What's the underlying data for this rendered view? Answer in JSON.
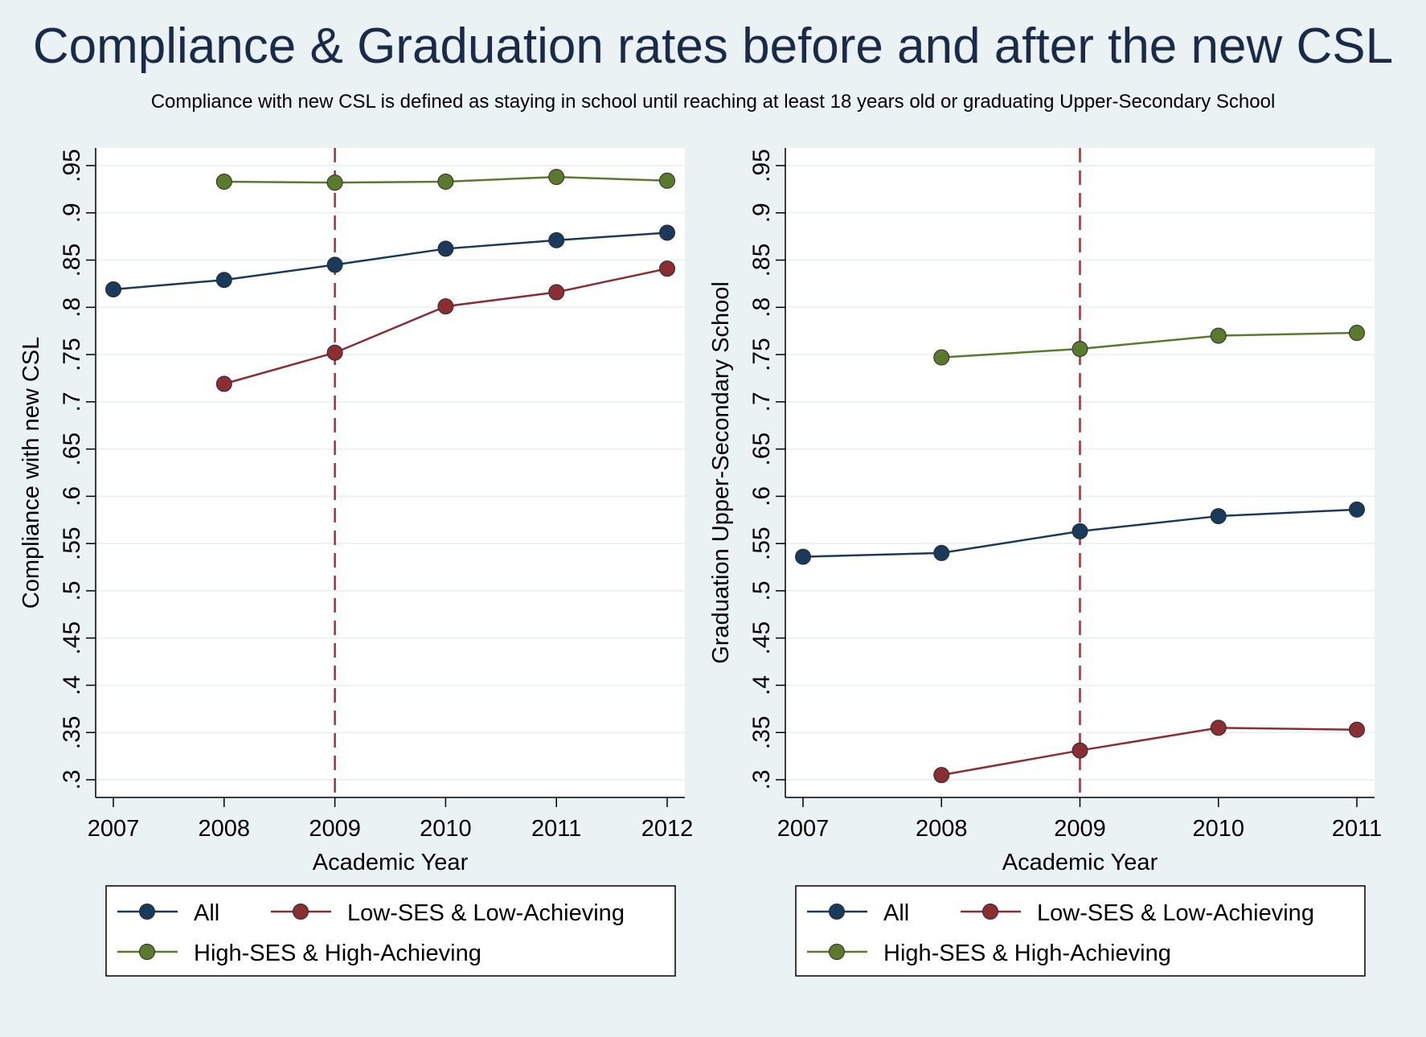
{
  "title": "Compliance & Graduation rates before and after the new CSL",
  "subtitle": "Compliance with new CSL is defined as staying in school until reaching at least 18 years old or graduating Upper-Secondary School",
  "colors": {
    "background": "#eaf2f3",
    "plot_background": "#ffffff",
    "grid": "#eaf2f3",
    "all": "#1a3a5c",
    "low": "#8b2e34",
    "high": "#5a7a2e",
    "reference_line": "#a0303a"
  },
  "legend_labels": [
    "All",
    "Low-SES & Low-Achieving",
    "High-SES & High-Achieving"
  ],
  "chart_data": [
    {
      "type": "line",
      "ylabel": "Compliance with new CSL",
      "xlabel": "Academic Year",
      "x_ticks": [
        "2007",
        "2008",
        "2009",
        "2010",
        "2011",
        "2012"
      ],
      "y_ticks": [
        ".3",
        ".35",
        ".4",
        ".45",
        ".5",
        ".55",
        ".6",
        ".65",
        ".7",
        ".75",
        ".8",
        ".85",
        ".9",
        ".95"
      ],
      "xlim": [
        2007,
        2012
      ],
      "ylim": [
        0.3,
        0.95
      ],
      "reference_x": 2009,
      "grid": true,
      "legend_position": "bottom",
      "series": [
        {
          "name": "All",
          "color_key": "all",
          "points": [
            [
              2007,
              0.819
            ],
            [
              2008,
              0.829
            ],
            [
              2009,
              0.845
            ],
            [
              2010,
              0.862
            ],
            [
              2011,
              0.871
            ],
            [
              2012,
              0.879
            ]
          ]
        },
        {
          "name": "Low-SES & Low-Achieving",
          "color_key": "low",
          "points": [
            [
              2008,
              0.719
            ],
            [
              2009,
              0.752
            ],
            [
              2010,
              0.801
            ],
            [
              2011,
              0.816
            ],
            [
              2012,
              0.841
            ]
          ]
        },
        {
          "name": "High-SES & High-Achieving",
          "color_key": "high",
          "points": [
            [
              2008,
              0.933
            ],
            [
              2009,
              0.932
            ],
            [
              2010,
              0.933
            ],
            [
              2011,
              0.938
            ],
            [
              2012,
              0.934
            ]
          ]
        }
      ]
    },
    {
      "type": "line",
      "ylabel": "Graduation Upper-Secondary School",
      "xlabel": "Academic Year",
      "x_ticks": [
        "2007",
        "2008",
        "2009",
        "2010",
        "2011"
      ],
      "y_ticks": [
        ".3",
        ".35",
        ".4",
        ".45",
        ".5",
        ".55",
        ".6",
        ".65",
        ".7",
        ".75",
        ".8",
        ".85",
        ".9",
        ".95"
      ],
      "xlim": [
        2007,
        2011
      ],
      "ylim": [
        0.3,
        0.95
      ],
      "reference_x": 2009,
      "grid": true,
      "legend_position": "bottom",
      "series": [
        {
          "name": "All",
          "color_key": "all",
          "points": [
            [
              2007,
              0.536
            ],
            [
              2008,
              0.54
            ],
            [
              2009,
              0.563
            ],
            [
              2010,
              0.579
            ],
            [
              2011,
              0.586
            ]
          ]
        },
        {
          "name": "Low-SES & Low-Achieving",
          "color_key": "low",
          "points": [
            [
              2008,
              0.305
            ],
            [
              2009,
              0.331
            ],
            [
              2010,
              0.355
            ],
            [
              2011,
              0.353
            ]
          ]
        },
        {
          "name": "High-SES & High-Achieving",
          "color_key": "high",
          "points": [
            [
              2008,
              0.747
            ],
            [
              2009,
              0.756
            ],
            [
              2010,
              0.77
            ],
            [
              2011,
              0.773
            ]
          ]
        }
      ]
    }
  ]
}
